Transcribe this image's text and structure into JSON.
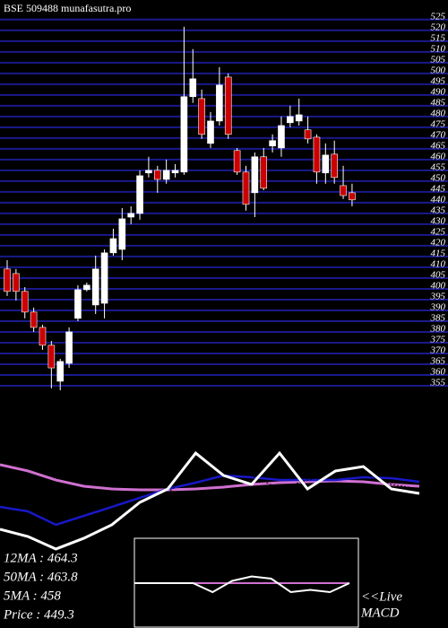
{
  "chart_data": [
    {
      "type": "candlestick",
      "title": "BSE 509488 munafasutra.pro",
      "open": [
        409.2,
        407.1,
        398.8,
        389.2,
        382.1,
        373.8,
        357.1,
        365.4,
        386.3,
        399.6,
        392.5,
        393.3,
        416.7,
        418.3,
        433.3,
        435.0,
        453.8,
        455.0,
        450.8,
        453.8,
        454.2,
        489.2,
        488.3,
        467.5,
        477.9,
        498.3,
        464.2,
        454.2,
        444.6,
        461.3,
        466.3,
        465.4,
        477.1,
        477.9,
        473.8,
        470.4,
        453.8,
        462.5,
        447.9,
        444.6
      ],
      "high": [
        413.3,
        409.2,
        400.8,
        391.3,
        383.3,
        375.8,
        367.5,
        382.1,
        401.7,
        402.9,
        415.4,
        418.3,
        427.9,
        437.5,
        438.3,
        455.0,
        461.3,
        457.1,
        460.0,
        457.9,
        521.7,
        511.3,
        492.5,
        482.1,
        502.9,
        500.0,
        465.4,
        457.1,
        463.3,
        465.4,
        471.7,
        480.0,
        485.0,
        488.3,
        480.0,
        471.7,
        467.5,
        468.8,
        457.1,
        448.8
      ],
      "low": [
        396.7,
        394.6,
        386.3,
        380.0,
        371.7,
        353.8,
        352.9,
        363.3,
        385.0,
        398.8,
        388.3,
        386.3,
        415.4,
        413.3,
        430.0,
        432.1,
        451.7,
        444.6,
        448.8,
        451.7,
        452.9,
        486.3,
        469.6,
        465.4,
        475.8,
        469.6,
        452.9,
        436.3,
        433.3,
        445.8,
        463.3,
        461.3,
        475.0,
        475.8,
        467.5,
        448.8,
        448.8,
        448.8,
        441.7,
        438.3
      ],
      "close": [
        398.8,
        398.8,
        389.2,
        382.1,
        373.8,
        363.3,
        366.3,
        380.0,
        399.6,
        401.7,
        409.2,
        416.7,
        423.3,
        432.5,
        435.0,
        452.5,
        455.0,
        450.8,
        455.0,
        455.0,
        489.2,
        497.5,
        471.7,
        477.9,
        494.6,
        471.7,
        454.2,
        439.2,
        461.3,
        446.7,
        468.8,
        475.8,
        480.0,
        480.8,
        469.6,
        454.2,
        462.1,
        451.7,
        443.3,
        441.3
      ],
      "up_color": "#ffffff",
      "down_color": "#cc0000",
      "ylim": [
        350,
        527
      ],
      "yticks": [
        355,
        360,
        365,
        370,
        375,
        380,
        385,
        390,
        395,
        400,
        405,
        410,
        415,
        420,
        425,
        430,
        435,
        440,
        445,
        450,
        455,
        460,
        465,
        470,
        475,
        480,
        485,
        490,
        495,
        500,
        505,
        510,
        515,
        520,
        525
      ],
      "grid": true,
      "grid_color": "#1a1a8c",
      "info": [
        "12MA : 464.3",
        "50MA : 463.8",
        "5MA : 458",
        "Price  : 449.3"
      ]
    },
    {
      "type": "line",
      "ylim": [
        0,
        100
      ],
      "series": [
        {
          "color": "#d070d0",
          "width": 3,
          "values": [
            85,
            79.2,
            70.8,
            65,
            62.5,
            61.7,
            61.7,
            62.5,
            64.2,
            66.7,
            68.3,
            69.2,
            70,
            69.2,
            66.7,
            65
          ]
        },
        {
          "color": "#1818c8",
          "width": 2.5,
          "values": [
            45.8,
            41.7,
            29.2,
            37.5,
            45.8,
            54.2,
            62.5,
            68.3,
            75,
            73.3,
            70.8,
            70.8,
            70.8,
            73.3,
            72.5,
            69.2
          ]
        },
        {
          "color": "#000000",
          "width": 1,
          "values": [
            37.5,
            33.3,
            16.7,
            20.8,
            33.3,
            45.8,
            58.3,
            83.3,
            87.5,
            75,
            62.5,
            70.8,
            76.7,
            76.7,
            66.7,
            62.5
          ]
        },
        {
          "color": "#ffffff",
          "width": 3,
          "values": [
            25,
            18.3,
            6.7,
            16.7,
            29.2,
            50,
            62.5,
            95.8,
            75,
            66.7,
            95.8,
            62.5,
            79.2,
            83.3,
            62.5,
            58.3
          ]
        }
      ]
    },
    {
      "type": "line",
      "title": "MACD",
      "note": "<<Live",
      "ylim": [
        -10,
        10
      ],
      "series": [
        {
          "color": "#d070d0",
          "width": 2,
          "values": [
            0,
            0,
            0,
            0,
            0,
            0,
            0,
            0,
            0,
            0,
            0,
            0
          ]
        },
        {
          "color": "#ffffff",
          "width": 2,
          "values": [
            0,
            0,
            0,
            0,
            -4,
            1,
            3,
            2,
            -4,
            -3,
            -4,
            0
          ]
        }
      ]
    }
  ]
}
